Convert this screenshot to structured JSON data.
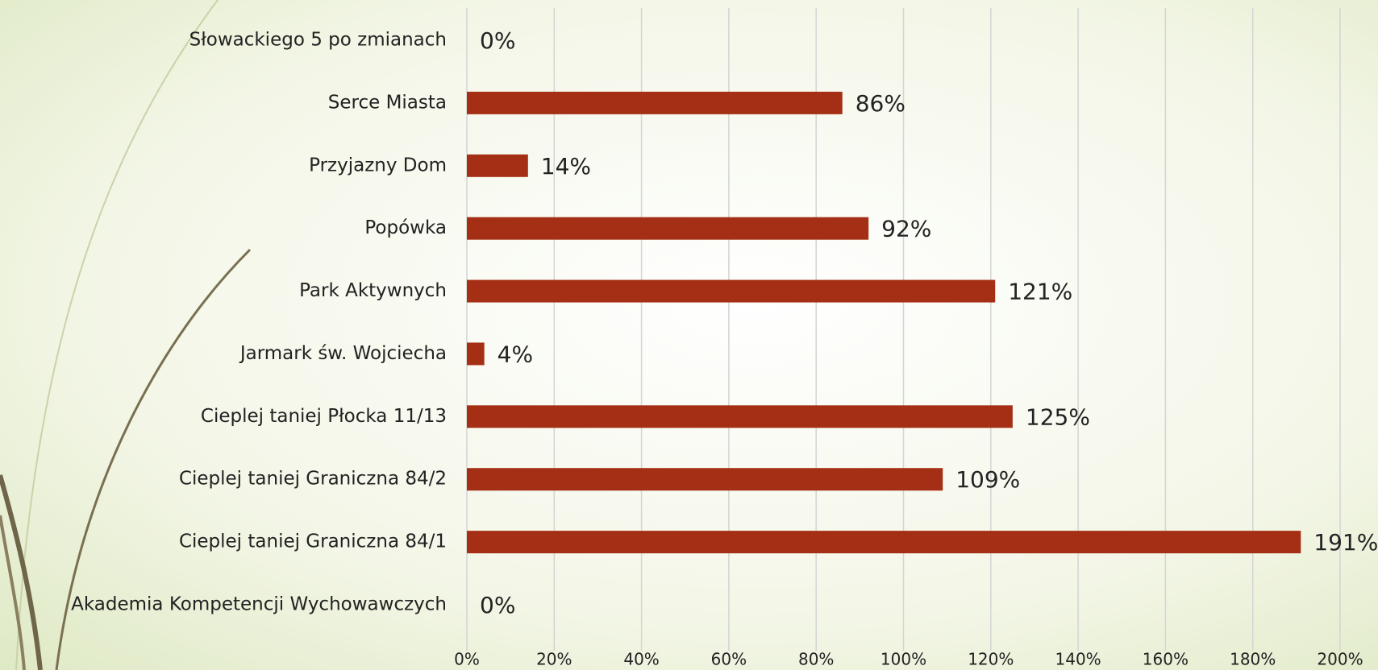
{
  "chart_data": {
    "type": "bar",
    "orientation": "horizontal",
    "categories": [
      "Słowackiego 5 po zmianach",
      "Serce Miasta",
      "Przyjazny Dom",
      "Popówka",
      "Park Aktywnych",
      "Jarmark św. Wojciecha",
      "Cieplej taniej Płocka 11/13",
      "Cieplej taniej Graniczna 84/2",
      "Cieplej taniej Graniczna 84/1",
      "Akademia Kompetencji Wychowawczych"
    ],
    "values": [
      0,
      86,
      14,
      92,
      121,
      4,
      125,
      109,
      191,
      0
    ],
    "value_labels": [
      "0%",
      "86%",
      "14%",
      "92%",
      "121%",
      "4%",
      "125%",
      "109%",
      "191%",
      "0%"
    ],
    "color": "#a52f14",
    "xlim": [
      0,
      200
    ],
    "xticks": [
      {
        "value": 0,
        "label": "0%"
      },
      {
        "value": 20,
        "label": "20%"
      },
      {
        "value": 40,
        "label": "40%"
      },
      {
        "value": 60,
        "label": "60%"
      },
      {
        "value": 80,
        "label": "80%"
      },
      {
        "value": 100,
        "label": "100%"
      },
      {
        "value": 120,
        "label": "120%"
      },
      {
        "value": 140,
        "label": "140%"
      },
      {
        "value": 160,
        "label": "160%"
      },
      {
        "value": 180,
        "label": "180%"
      },
      {
        "value": 200,
        "label": "200%"
      }
    ],
    "grid": true
  }
}
